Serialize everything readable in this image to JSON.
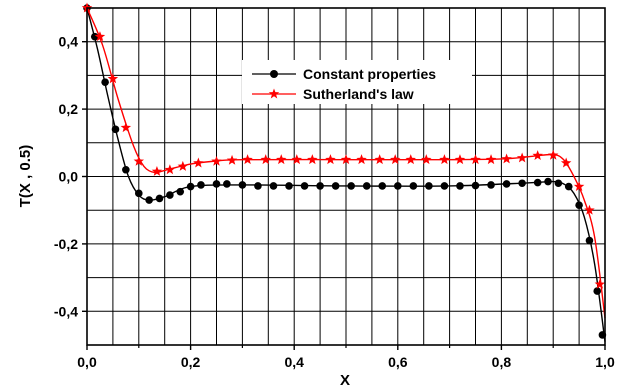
{
  "chart_data": {
    "type": "line",
    "xlabel": "X",
    "ylabel": "T(X , 0.5)",
    "xlim": [
      0.0,
      1.0
    ],
    "ylim": [
      -0.5,
      0.5
    ],
    "grid": true,
    "legend_position": "upper-center",
    "x_ticks": [
      0.0,
      0.2,
      0.4,
      0.6,
      0.8,
      1.0
    ],
    "x_tick_labels": [
      "0,0",
      "0,2",
      "0,4",
      "0,6",
      "0,8",
      "1,0"
    ],
    "y_ticks": [
      -0.4,
      -0.2,
      0.0,
      0.2,
      0.4
    ],
    "y_tick_labels": [
      "-0,4",
      "-0,2",
      "0,0",
      "0,2",
      "0,4"
    ],
    "series": [
      {
        "name": "Constant properties",
        "color": "#000000",
        "marker": "circle",
        "markers": [
          [
            0.0,
            0.5
          ],
          [
            0.015,
            0.415
          ],
          [
            0.035,
            0.28
          ],
          [
            0.055,
            0.14
          ],
          [
            0.075,
            0.02
          ],
          [
            0.1,
            -0.05
          ],
          [
            0.12,
            -0.07
          ],
          [
            0.14,
            -0.065
          ],
          [
            0.16,
            -0.055
          ],
          [
            0.18,
            -0.045
          ],
          [
            0.2,
            -0.03
          ],
          [
            0.22,
            -0.025
          ],
          [
            0.25,
            -0.022
          ],
          [
            0.27,
            -0.022
          ],
          [
            0.3,
            -0.025
          ],
          [
            0.33,
            -0.028
          ],
          [
            0.36,
            -0.028
          ],
          [
            0.39,
            -0.028
          ],
          [
            0.42,
            -0.028
          ],
          [
            0.45,
            -0.028
          ],
          [
            0.48,
            -0.028
          ],
          [
            0.51,
            -0.028
          ],
          [
            0.54,
            -0.028
          ],
          [
            0.57,
            -0.028
          ],
          [
            0.6,
            -0.028
          ],
          [
            0.63,
            -0.028
          ],
          [
            0.66,
            -0.028
          ],
          [
            0.69,
            -0.028
          ],
          [
            0.72,
            -0.028
          ],
          [
            0.75,
            -0.027
          ],
          [
            0.78,
            -0.025
          ],
          [
            0.81,
            -0.022
          ],
          [
            0.84,
            -0.02
          ],
          [
            0.87,
            -0.018
          ],
          [
            0.89,
            -0.015
          ],
          [
            0.91,
            -0.02
          ],
          [
            0.93,
            -0.03
          ],
          [
            0.95,
            -0.085
          ],
          [
            0.97,
            -0.19
          ],
          [
            0.985,
            -0.34
          ],
          [
            0.995,
            -0.47
          ]
        ],
        "curve": [
          [
            0.0,
            0.5
          ],
          [
            0.02,
            0.38
          ],
          [
            0.04,
            0.24
          ],
          [
            0.06,
            0.11
          ],
          [
            0.08,
            0.0
          ],
          [
            0.1,
            -0.055
          ],
          [
            0.12,
            -0.07
          ],
          [
            0.15,
            -0.06
          ],
          [
            0.2,
            -0.03
          ],
          [
            0.3,
            -0.025
          ],
          [
            0.5,
            -0.028
          ],
          [
            0.7,
            -0.028
          ],
          [
            0.85,
            -0.019
          ],
          [
            0.9,
            -0.015
          ],
          [
            0.92,
            -0.022
          ],
          [
            0.94,
            -0.05
          ],
          [
            0.96,
            -0.12
          ],
          [
            0.98,
            -0.26
          ],
          [
            1.0,
            -0.49
          ]
        ]
      },
      {
        "name": "Sutherland's law",
        "color": "#ff0000",
        "marker": "star",
        "markers": [
          [
            0.0,
            0.5
          ],
          [
            0.025,
            0.415
          ],
          [
            0.05,
            0.29
          ],
          [
            0.075,
            0.145
          ],
          [
            0.1,
            0.045
          ],
          [
            0.135,
            0.015
          ],
          [
            0.16,
            0.02
          ],
          [
            0.185,
            0.03
          ],
          [
            0.215,
            0.04
          ],
          [
            0.25,
            0.045
          ],
          [
            0.28,
            0.048
          ],
          [
            0.31,
            0.05
          ],
          [
            0.345,
            0.05
          ],
          [
            0.375,
            0.05
          ],
          [
            0.405,
            0.05
          ],
          [
            0.435,
            0.05
          ],
          [
            0.47,
            0.05
          ],
          [
            0.5,
            0.05
          ],
          [
            0.53,
            0.05
          ],
          [
            0.565,
            0.05
          ],
          [
            0.595,
            0.05
          ],
          [
            0.625,
            0.05
          ],
          [
            0.655,
            0.05
          ],
          [
            0.69,
            0.05
          ],
          [
            0.72,
            0.05
          ],
          [
            0.75,
            0.05
          ],
          [
            0.78,
            0.05
          ],
          [
            0.81,
            0.052
          ],
          [
            0.84,
            0.055
          ],
          [
            0.87,
            0.062
          ],
          [
            0.9,
            0.063
          ],
          [
            0.925,
            0.04
          ],
          [
            0.95,
            -0.03
          ],
          [
            0.97,
            -0.1
          ],
          [
            0.99,
            -0.32
          ]
        ],
        "curve": [
          [
            0.0,
            0.5
          ],
          [
            0.03,
            0.39
          ],
          [
            0.06,
            0.23
          ],
          [
            0.09,
            0.09
          ],
          [
            0.11,
            0.03
          ],
          [
            0.13,
            0.012
          ],
          [
            0.15,
            0.018
          ],
          [
            0.2,
            0.037
          ],
          [
            0.25,
            0.046
          ],
          [
            0.3,
            0.05
          ],
          [
            0.5,
            0.05
          ],
          [
            0.7,
            0.05
          ],
          [
            0.8,
            0.052
          ],
          [
            0.86,
            0.06
          ],
          [
            0.9,
            0.065
          ],
          [
            0.92,
            0.05
          ],
          [
            0.94,
            0.0
          ],
          [
            0.96,
            -0.07
          ],
          [
            0.98,
            -0.18
          ],
          [
            1.0,
            -0.42
          ]
        ]
      }
    ]
  }
}
